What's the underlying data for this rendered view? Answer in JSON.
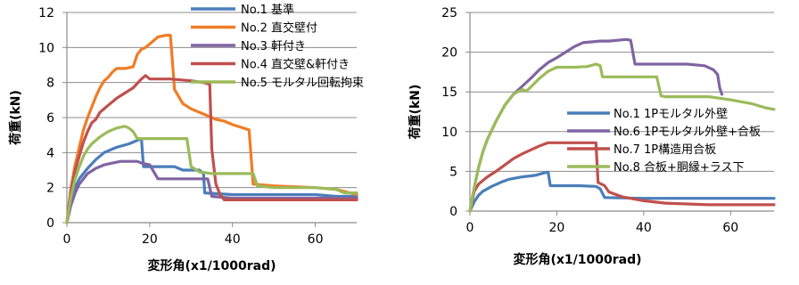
{
  "chart_data": [
    {
      "type": "line",
      "xlabel": "変形角(x1/1000rad)",
      "ylabel": "荷重(kN)",
      "xlim": [
        0,
        70
      ],
      "ylim": [
        0,
        12
      ],
      "xticks": [
        0,
        20,
        40,
        60
      ],
      "yticks": [
        0,
        2,
        4,
        6,
        8,
        10,
        12
      ],
      "legend_position": "top-right",
      "series": [
        {
          "name": "No.1 基準",
          "color": "#4a7ebb",
          "points": [
            [
              0,
              0
            ],
            [
              1,
              1.2
            ],
            [
              2,
              2
            ],
            [
              3,
              2.5
            ],
            [
              5,
              3.1
            ],
            [
              7,
              3.6
            ],
            [
              9,
              4
            ],
            [
              12,
              4.3
            ],
            [
              15,
              4.5
            ],
            [
              17,
              4.7
            ],
            [
              18,
              4.8
            ],
            [
              18.5,
              3.2
            ],
            [
              20,
              3.2
            ],
            [
              26,
              3.2
            ],
            [
              28,
              3
            ],
            [
              32,
              3
            ],
            [
              33,
              2.8
            ],
            [
              33.3,
              1.7
            ],
            [
              40,
              1.6
            ],
            [
              60,
              1.6
            ],
            [
              65,
              1.5
            ],
            [
              70,
              1.5
            ]
          ]
        },
        {
          "name": "No.2 直交壁付",
          "color": "#f07c25",
          "points": [
            [
              0,
              0
            ],
            [
              1,
              2
            ],
            [
              2,
              3.3
            ],
            [
              3,
              4.3
            ],
            [
              4,
              5.3
            ],
            [
              5,
              6
            ],
            [
              6,
              6.6
            ],
            [
              7,
              7.2
            ],
            [
              8,
              7.7
            ],
            [
              9,
              8.1
            ],
            [
              10,
              8.3
            ],
            [
              11,
              8.6
            ],
            [
              12,
              8.8
            ],
            [
              14,
              8.8
            ],
            [
              16,
              8.9
            ],
            [
              17,
              9.6
            ],
            [
              18,
              9.9
            ],
            [
              19,
              10
            ],
            [
              20,
              10.2
            ],
            [
              22,
              10.6
            ],
            [
              24,
              10.7
            ],
            [
              25,
              10.7
            ],
            [
              26,
              7.6
            ],
            [
              28,
              6.8
            ],
            [
              30,
              6.5
            ],
            [
              32,
              6.3
            ],
            [
              34,
              6.1
            ],
            [
              36,
              5.9
            ],
            [
              38,
              5.8
            ],
            [
              40,
              5.6
            ],
            [
              44,
              5.3
            ],
            [
              45,
              2.2
            ],
            [
              50,
              2.1
            ],
            [
              60,
              2.0
            ],
            [
              65,
              1.9
            ],
            [
              70,
              1.6
            ]
          ]
        },
        {
          "name": "No.3 軒付き",
          "color": "#8064a2",
          "points": [
            [
              0,
              0
            ],
            [
              1,
              1.0
            ],
            [
              2,
              1.7
            ],
            [
              3,
              2.2
            ],
            [
              5,
              2.8
            ],
            [
              7,
              3.1
            ],
            [
              9,
              3.3
            ],
            [
              11,
              3.4
            ],
            [
              13,
              3.5
            ],
            [
              15,
              3.5
            ],
            [
              17,
              3.5
            ],
            [
              18,
              3.4
            ],
            [
              20,
              3.3
            ],
            [
              22,
              2.5
            ],
            [
              25,
              2.5
            ],
            [
              34,
              2.5
            ],
            [
              35,
              1.5
            ],
            [
              40,
              1.4
            ],
            [
              50,
              1.4
            ],
            [
              60,
              1.4
            ],
            [
              70,
              1.4
            ]
          ]
        },
        {
          "name": "No.4 直交壁&軒付き",
          "color": "#c0504d",
          "points": [
            [
              0,
              0
            ],
            [
              1,
              1.8
            ],
            [
              2,
              3
            ],
            [
              3,
              3.8
            ],
            [
              4,
              4.6
            ],
            [
              5,
              5.2
            ],
            [
              6,
              5.7
            ],
            [
              7,
              5.9
            ],
            [
              8,
              6.3
            ],
            [
              10,
              6.7
            ],
            [
              12,
              7.1
            ],
            [
              14,
              7.4
            ],
            [
              16,
              7.7
            ],
            [
              18,
              8.2
            ],
            [
              19,
              8.4
            ],
            [
              20,
              8.2
            ],
            [
              25,
              8.2
            ],
            [
              30,
              8.1
            ],
            [
              33,
              8.0
            ],
            [
              34.5,
              7.9
            ],
            [
              35,
              4.2
            ],
            [
              36,
              2.2
            ],
            [
              37,
              1.6
            ],
            [
              38,
              1.3
            ],
            [
              45,
              1.3
            ],
            [
              55,
              1.3
            ],
            [
              60,
              1.3
            ],
            [
              70,
              1.3
            ]
          ]
        },
        {
          "name": "No.5 モルタル回転拘束",
          "color": "#9bbb59",
          "points": [
            [
              0,
              0
            ],
            [
              1,
              1.5
            ],
            [
              2,
              2.5
            ],
            [
              3,
              3.2
            ],
            [
              4,
              3.8
            ],
            [
              5,
              4.2
            ],
            [
              6,
              4.5
            ],
            [
              8,
              4.9
            ],
            [
              10,
              5.2
            ],
            [
              12,
              5.4
            ],
            [
              14,
              5.5
            ],
            [
              15,
              5.4
            ],
            [
              16,
              5.2
            ],
            [
              17,
              4.8
            ],
            [
              20,
              4.8
            ],
            [
              26,
              4.8
            ],
            [
              29,
              4.8
            ],
            [
              30,
              3.2
            ],
            [
              32,
              2.9
            ],
            [
              35,
              2.8
            ],
            [
              45,
              2.8
            ],
            [
              46,
              2.1
            ],
            [
              50,
              2.0
            ],
            [
              60,
              2.0
            ],
            [
              65,
              1.9
            ],
            [
              67,
              1.7
            ],
            [
              70,
              1.7
            ]
          ]
        }
      ]
    },
    {
      "type": "line",
      "xlabel": "変形角(x1/1000rad)",
      "ylabel": "荷重(kN)",
      "xlim": [
        0,
        70
      ],
      "ylim": [
        0,
        25
      ],
      "xticks": [
        0,
        20,
        40,
        60
      ],
      "yticks": [
        0,
        5,
        10,
        15,
        20,
        25
      ],
      "legend_position": "bottom-right",
      "series": [
        {
          "name": "No.1 1Pモルタル外壁",
          "color": "#4a7ebb",
          "points": [
            [
              0,
              0
            ],
            [
              1,
              1.2
            ],
            [
              2,
              2
            ],
            [
              3,
              2.5
            ],
            [
              5,
              3.1
            ],
            [
              7,
              3.6
            ],
            [
              9,
              4
            ],
            [
              12,
              4.3
            ],
            [
              15,
              4.5
            ],
            [
              17,
              4.8
            ],
            [
              18,
              4.9
            ],
            [
              18.5,
              3.2
            ],
            [
              20,
              3.2
            ],
            [
              25,
              3.2
            ],
            [
              29,
              3.1
            ],
            [
              30,
              2.8
            ],
            [
              31,
              1.7
            ],
            [
              40,
              1.6
            ],
            [
              60,
              1.6
            ],
            [
              70,
              1.6
            ]
          ]
        },
        {
          "name": "No.6 1Pモルタル外壁+合板",
          "color": "#8064a2",
          "points": [
            [
              0,
              0
            ],
            [
              1,
              3
            ],
            [
              2,
              5.5
            ],
            [
              3,
              7.5
            ],
            [
              4,
              9
            ],
            [
              6,
              11.3
            ],
            [
              8,
              13.3
            ],
            [
              10,
              14.7
            ],
            [
              12,
              15.7
            ],
            [
              14,
              16.7
            ],
            [
              16,
              17.8
            ],
            [
              18,
              18.7
            ],
            [
              20,
              19.3
            ],
            [
              22,
              20.0
            ],
            [
              24,
              20.7
            ],
            [
              26,
              21.2
            ],
            [
              28,
              21.3
            ],
            [
              30,
              21.4
            ],
            [
              32,
              21.4
            ],
            [
              34,
              21.5
            ],
            [
              36,
              21.6
            ],
            [
              37,
              21.5
            ],
            [
              38,
              18.5
            ],
            [
              40,
              18.5
            ],
            [
              50,
              18.5
            ],
            [
              54,
              18.3
            ],
            [
              56,
              17.8
            ],
            [
              57,
              17.2
            ],
            [
              57.5,
              15.5
            ],
            [
              58,
              14.7
            ]
          ]
        },
        {
          "name": "No.7 1P構造用合板",
          "color": "#c0504d",
          "points": [
            [
              0,
              0
            ],
            [
              1,
              2.5
            ],
            [
              2,
              3.4
            ],
            [
              4,
              4.3
            ],
            [
              6,
              5
            ],
            [
              8,
              5.8
            ],
            [
              10,
              6.6
            ],
            [
              12,
              7.2
            ],
            [
              14,
              7.7
            ],
            [
              16,
              8.2
            ],
            [
              18,
              8.6
            ],
            [
              20,
              8.6
            ],
            [
              25,
              8.6
            ],
            [
              29,
              8.6
            ],
            [
              29.5,
              3.6
            ],
            [
              31,
              3.2
            ],
            [
              32,
              2.4
            ],
            [
              35,
              1.8
            ],
            [
              40,
              1.3
            ],
            [
              45,
              1.0
            ],
            [
              50,
              0.9
            ],
            [
              55,
              0.8
            ],
            [
              60,
              0.8
            ],
            [
              70,
              0.8
            ]
          ]
        },
        {
          "name": "No.8 合板+胴縁+ラス下",
          "color": "#9bbb59",
          "points": [
            [
              0,
              0
            ],
            [
              1,
              3
            ],
            [
              2,
              5.5
            ],
            [
              3,
              7.5
            ],
            [
              4,
              9
            ],
            [
              6,
              11.3
            ],
            [
              8,
              13.3
            ],
            [
              10,
              14.7
            ],
            [
              12,
              15.3
            ],
            [
              13,
              15.1
            ],
            [
              14,
              15.6
            ],
            [
              16,
              16.7
            ],
            [
              18,
              17.6
            ],
            [
              20,
              18.1
            ],
            [
              24,
              18.1
            ],
            [
              27,
              18.2
            ],
            [
              29,
              18.5
            ],
            [
              30,
              18.3
            ],
            [
              30.5,
              16.9
            ],
            [
              33,
              16.9
            ],
            [
              40,
              16.9
            ],
            [
              43,
              16.9
            ],
            [
              44,
              14.5
            ],
            [
              45,
              14.4
            ],
            [
              55,
              14.4
            ],
            [
              60,
              14.0
            ],
            [
              65,
              13.5
            ],
            [
              68,
              13.0
            ],
            [
              70,
              12.8
            ]
          ]
        }
      ]
    }
  ]
}
